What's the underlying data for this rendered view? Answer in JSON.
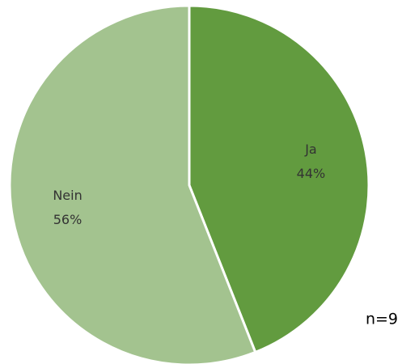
{
  "chart_data": {
    "type": "pie",
    "categories": [
      "Ja",
      "Nein"
    ],
    "values": [
      44,
      56
    ],
    "value_labels": [
      "44%",
      "56%"
    ],
    "colors": [
      "#629b3f",
      "#a3c38f"
    ],
    "annotation": "n=9"
  }
}
